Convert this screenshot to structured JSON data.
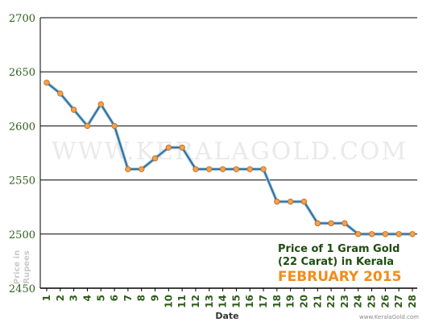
{
  "chart_data": {
    "type": "line",
    "title_lines": [
      "Price of 1 Gram Gold",
      "(22 Carat) in Kerala"
    ],
    "subtitle": "FEBRUARY 2015",
    "xlabel": "Date",
    "ylabel": "Price in Rupees",
    "ylim": [
      2450,
      2700
    ],
    "yticks": [
      2450,
      2500,
      2550,
      2600,
      2650,
      2700
    ],
    "grid": true,
    "categories": [
      "1",
      "2",
      "3",
      "4",
      "5",
      "6",
      "7",
      "8",
      "9",
      "10",
      "11",
      "12",
      "13",
      "14",
      "15",
      "16",
      "17",
      "18",
      "19",
      "20",
      "21",
      "22",
      "23",
      "24",
      "25",
      "26",
      "27",
      "28"
    ],
    "values": [
      2640,
      2630,
      2615,
      2600,
      2620,
      2600,
      2560,
      2560,
      2570,
      2580,
      2580,
      2560,
      2560,
      2560,
      2560,
      2560,
      2560,
      2530,
      2530,
      2530,
      2510,
      2510,
      2510,
      2500,
      2500,
      2500,
      2500,
      2500
    ],
    "line_color": "#2c6fa0",
    "marker_color": "#f5a04a"
  },
  "watermark": "WWW.KERALAGOLD.COM",
  "credit": "www.KeralaGold.com"
}
